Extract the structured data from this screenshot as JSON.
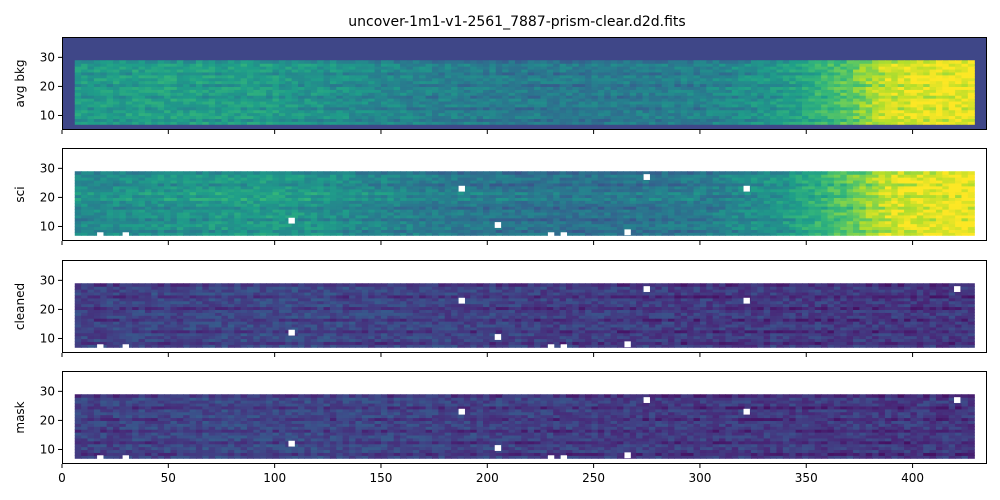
{
  "chart_data": {
    "type": "heatmap",
    "title": "uncover-1m1-v1-2561_7887-prism-clear.d2d.fits",
    "colormap": "viridis",
    "x_range": [
      0,
      435
    ],
    "y_range": [
      5,
      37
    ],
    "x_ticks": [
      "0",
      "50",
      "100",
      "150",
      "200",
      "250",
      "300",
      "350",
      "400"
    ],
    "y_ticks": [
      "10",
      "20",
      "30"
    ],
    "sharex": true,
    "x_tick_labels_shown_on": "bottom panel only",
    "panels": [
      {
        "ylabel": "avg bkg",
        "data_extent": {
          "x": [
            6,
            427
          ],
          "y": [
            7,
            29
          ]
        },
        "background": "#3f4788",
        "description": "background model rises from left to right, saturating (yellow) beyond x~380",
        "level_profile": [
          [
            6,
            0.55
          ],
          [
            50,
            0.58
          ],
          [
            100,
            0.56
          ],
          [
            150,
            0.48
          ],
          [
            200,
            0.43
          ],
          [
            250,
            0.42
          ],
          [
            300,
            0.45
          ],
          [
            340,
            0.55
          ],
          [
            370,
            0.75
          ],
          [
            390,
            0.95
          ],
          [
            427,
            1.0
          ]
        ],
        "masked_pixels": []
      },
      {
        "ylabel": "sci",
        "data_extent": {
          "x": [
            6,
            427
          ],
          "y": [
            7,
            29
          ]
        },
        "background": "#ffffff",
        "description": "science frame with faint trace near y~20 and bright right end",
        "level_profile": [
          [
            6,
            0.48
          ],
          [
            50,
            0.52
          ],
          [
            100,
            0.56
          ],
          [
            150,
            0.46
          ],
          [
            200,
            0.4
          ],
          [
            250,
            0.38
          ],
          [
            300,
            0.42
          ],
          [
            340,
            0.55
          ],
          [
            370,
            0.75
          ],
          [
            390,
            0.95
          ],
          [
            427,
            1.0
          ]
        ],
        "masked_pixels": [
          [
            108,
            12
          ],
          [
            188,
            23
          ],
          [
            205,
            10.5
          ],
          [
            275,
            27
          ],
          [
            322,
            23
          ],
          [
            266,
            8
          ],
          [
            230,
            7
          ],
          [
            236,
            7
          ],
          [
            30,
            7
          ],
          [
            18,
            7
          ]
        ]
      },
      {
        "ylabel": "cleaned",
        "data_extent": {
          "x": [
            6,
            427
          ],
          "y": [
            7,
            29
          ]
        },
        "background": "#ffffff",
        "description": "background-subtracted frame, mostly dark with noise",
        "level_profile": [
          [
            6,
            0.2
          ],
          [
            100,
            0.23
          ],
          [
            200,
            0.2
          ],
          [
            300,
            0.18
          ],
          [
            427,
            0.17
          ]
        ],
        "masked_pixels": [
          [
            108,
            12
          ],
          [
            188,
            23
          ],
          [
            205,
            10.5
          ],
          [
            275,
            27
          ],
          [
            322,
            23
          ],
          [
            421,
            27
          ],
          [
            266,
            8
          ],
          [
            230,
            7
          ],
          [
            236,
            7
          ],
          [
            30,
            7
          ],
          [
            18,
            7
          ]
        ]
      },
      {
        "ylabel": "mask",
        "data_extent": {
          "x": [
            6,
            427
          ],
          "y": [
            7,
            29
          ]
        },
        "background": "#ffffff",
        "description": "masked/cleaned frame, mostly dark with noise",
        "level_profile": [
          [
            6,
            0.2
          ],
          [
            100,
            0.23
          ],
          [
            200,
            0.2
          ],
          [
            300,
            0.18
          ],
          [
            427,
            0.17
          ]
        ],
        "masked_pixels": [
          [
            108,
            12
          ],
          [
            188,
            23
          ],
          [
            205,
            10.5
          ],
          [
            275,
            27
          ],
          [
            322,
            23
          ],
          [
            421,
            27
          ],
          [
            266,
            8
          ],
          [
            230,
            7
          ],
          [
            236,
            7
          ],
          [
            30,
            7
          ],
          [
            18,
            7
          ]
        ]
      }
    ]
  }
}
